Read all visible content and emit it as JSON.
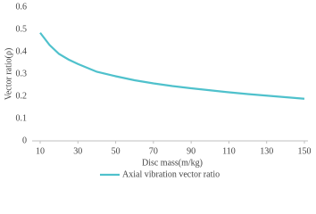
{
  "chart_data": {
    "type": "line",
    "x_label": "Disc mass(m/kg)",
    "y_label": "Vector ratio(ρ)",
    "x": [
      10,
      15,
      20,
      25,
      30,
      40,
      50,
      60,
      70,
      80,
      90,
      100,
      110,
      120,
      130,
      140,
      150
    ],
    "series": [
      {
        "name": "Axial vibration vector ratio",
        "color": "#4fc1cc",
        "values": [
          0.485,
          0.43,
          0.39,
          0.365,
          0.345,
          0.31,
          0.29,
          0.272,
          0.258,
          0.246,
          0.236,
          0.227,
          0.218,
          0.21,
          0.203,
          0.196,
          0.189
        ]
      }
    ],
    "xlim": [
      10,
      150
    ],
    "xticks": [
      10,
      30,
      50,
      70,
      90,
      110,
      130,
      150
    ],
    "ylim": [
      0,
      0.6
    ],
    "yticks": [
      0,
      0.1,
      0.2,
      0.3,
      0.4,
      0.5,
      0.6
    ],
    "grid": false
  }
}
